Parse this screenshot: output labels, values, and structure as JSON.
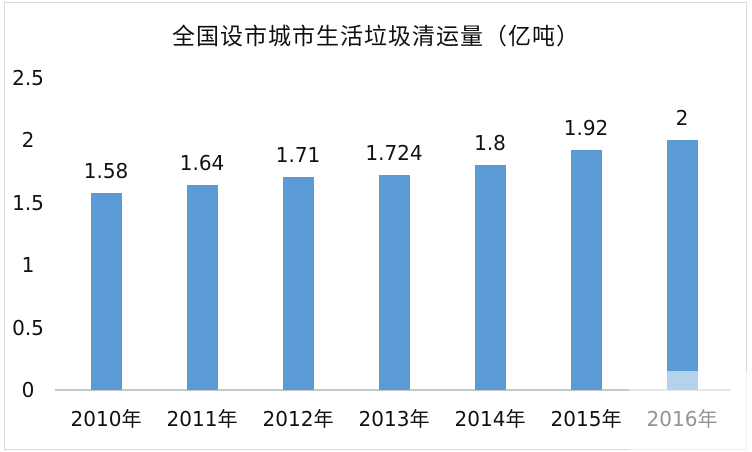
{
  "chart_data": {
    "type": "bar",
    "title": "全国设市城市生活垃圾清运量（亿吨）",
    "categories": [
      "2010年",
      "2011年",
      "2012年",
      "2013年",
      "2014年",
      "2015年",
      "2016年"
    ],
    "values": [
      1.58,
      1.64,
      1.71,
      1.724,
      1.8,
      1.92,
      2
    ],
    "value_labels": [
      "1.58",
      "1.64",
      "1.71",
      "1.724",
      "1.8",
      "1.92",
      "2"
    ],
    "yticks": [
      0,
      0.5,
      1,
      1.5,
      2,
      2.5
    ],
    "ytick_labels": [
      "0",
      "0.5",
      "1",
      "1.5",
      "2",
      "2.5"
    ],
    "ylim": [
      0,
      2.5
    ],
    "xlabel": "",
    "ylabel": "",
    "grid": false,
    "legend": false,
    "colors": {
      "bar": "#5B9BD5",
      "axis_line": "#C9C9C9",
      "border": "#D9D9D9",
      "text": "#111111",
      "background": "#FFFFFF"
    },
    "watermark": {
      "present": true,
      "description": "translucent white rounded box over bottom-right corner covering part of last bar and 2016年 label"
    }
  }
}
